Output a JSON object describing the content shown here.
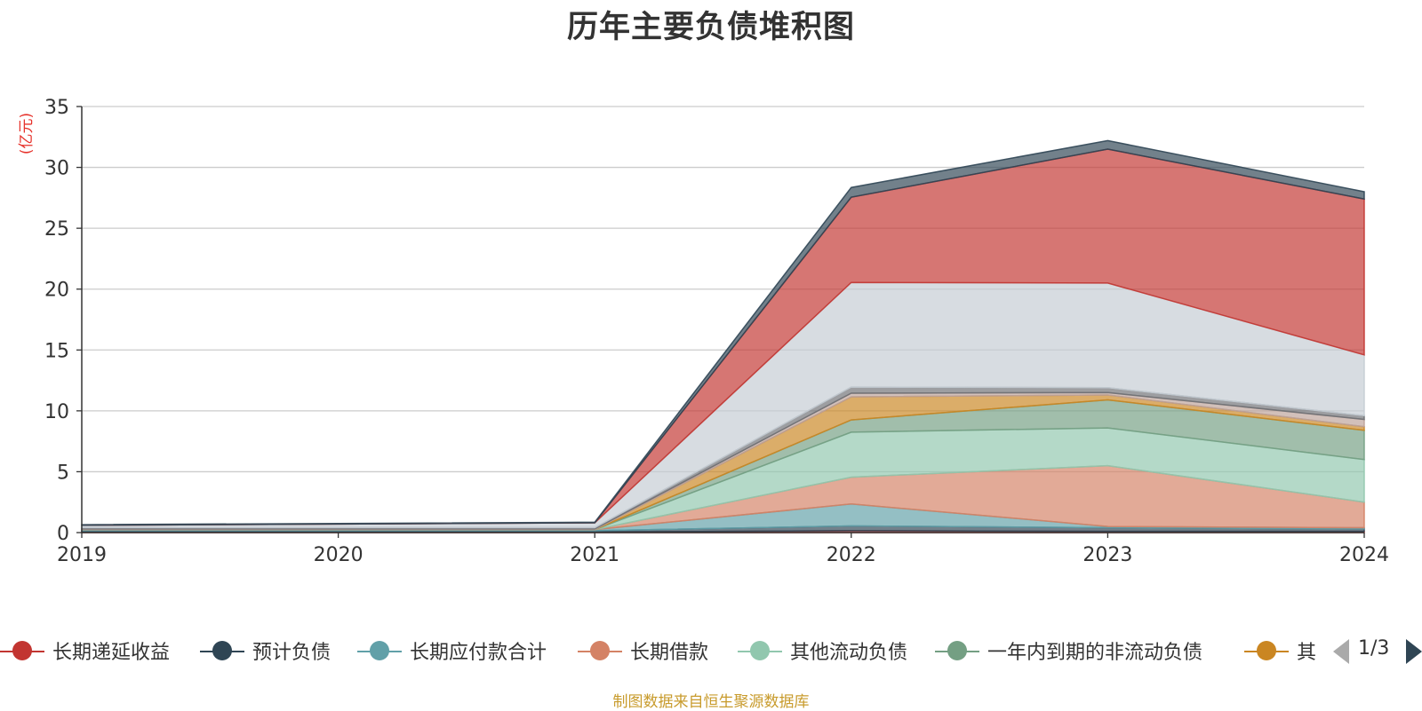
{
  "chart_data": {
    "type": "area",
    "stacked": true,
    "title": "历年主要负债堆积图",
    "unit_label": "(亿元)",
    "x": [
      "2019",
      "2020",
      "2021",
      "2022",
      "2023",
      "2024"
    ],
    "ylim": [
      0,
      35
    ],
    "yticks": [
      "0",
      "5",
      "10",
      "15",
      "20",
      "25",
      "30",
      "35"
    ],
    "grid": true,
    "legend_position": "bottom",
    "legend_page": "1/3",
    "series": [
      {
        "name": "长期递延收益",
        "color": "#c23531",
        "values": [
          0.05,
          0.05,
          0.05,
          0.15,
          0.1,
          0.1
        ]
      },
      {
        "name": "预计负债",
        "color": "#2f4554",
        "values": [
          0.1,
          0.1,
          0.1,
          0.4,
          0.3,
          0.2
        ]
      },
      {
        "name": "长期应付款合计",
        "color": "#61a0a8",
        "values": [
          0.1,
          0.1,
          0.1,
          1.8,
          0.1,
          0.1
        ]
      },
      {
        "name": "长期借款",
        "color": "#d48265",
        "values": [
          0,
          0,
          0,
          2.2,
          5.0,
          2.1
        ]
      },
      {
        "name": "其他流动负债",
        "color": "#91c7ae",
        "values": [
          0,
          0,
          0,
          3.7,
          3.1,
          3.5
        ]
      },
      {
        "name": "一年内到期的非流动负债",
        "color": "#749f83",
        "values": [
          0,
          0,
          0,
          1.0,
          2.3,
          2.4
        ]
      },
      {
        "name": "其",
        "color": "#ca8622",
        "values": [
          0,
          0,
          0,
          1.9,
          0.4,
          0.3
        ]
      },
      {
        "color": "#bda29a",
        "values": [
          0.05,
          0.05,
          0.05,
          0.3,
          0.2,
          0.6
        ]
      },
      {
        "color": "#6e7074",
        "values": [
          0.1,
          0.1,
          0.1,
          0.5,
          0.4,
          0.3
        ]
      },
      {
        "color": "#c4ccd3",
        "values": [
          0.2,
          0.3,
          0.4,
          8.6,
          8.6,
          5.0
        ]
      },
      {
        "color": "#c23531",
        "values": [
          0,
          0,
          0,
          7.0,
          11.0,
          12.8
        ]
      },
      {
        "color": "#2f4554",
        "values": [
          0.05,
          0.05,
          0.05,
          0.8,
          0.7,
          0.6
        ]
      }
    ]
  },
  "footer": {
    "source": "制图数据来自恒生聚源数据库"
  }
}
